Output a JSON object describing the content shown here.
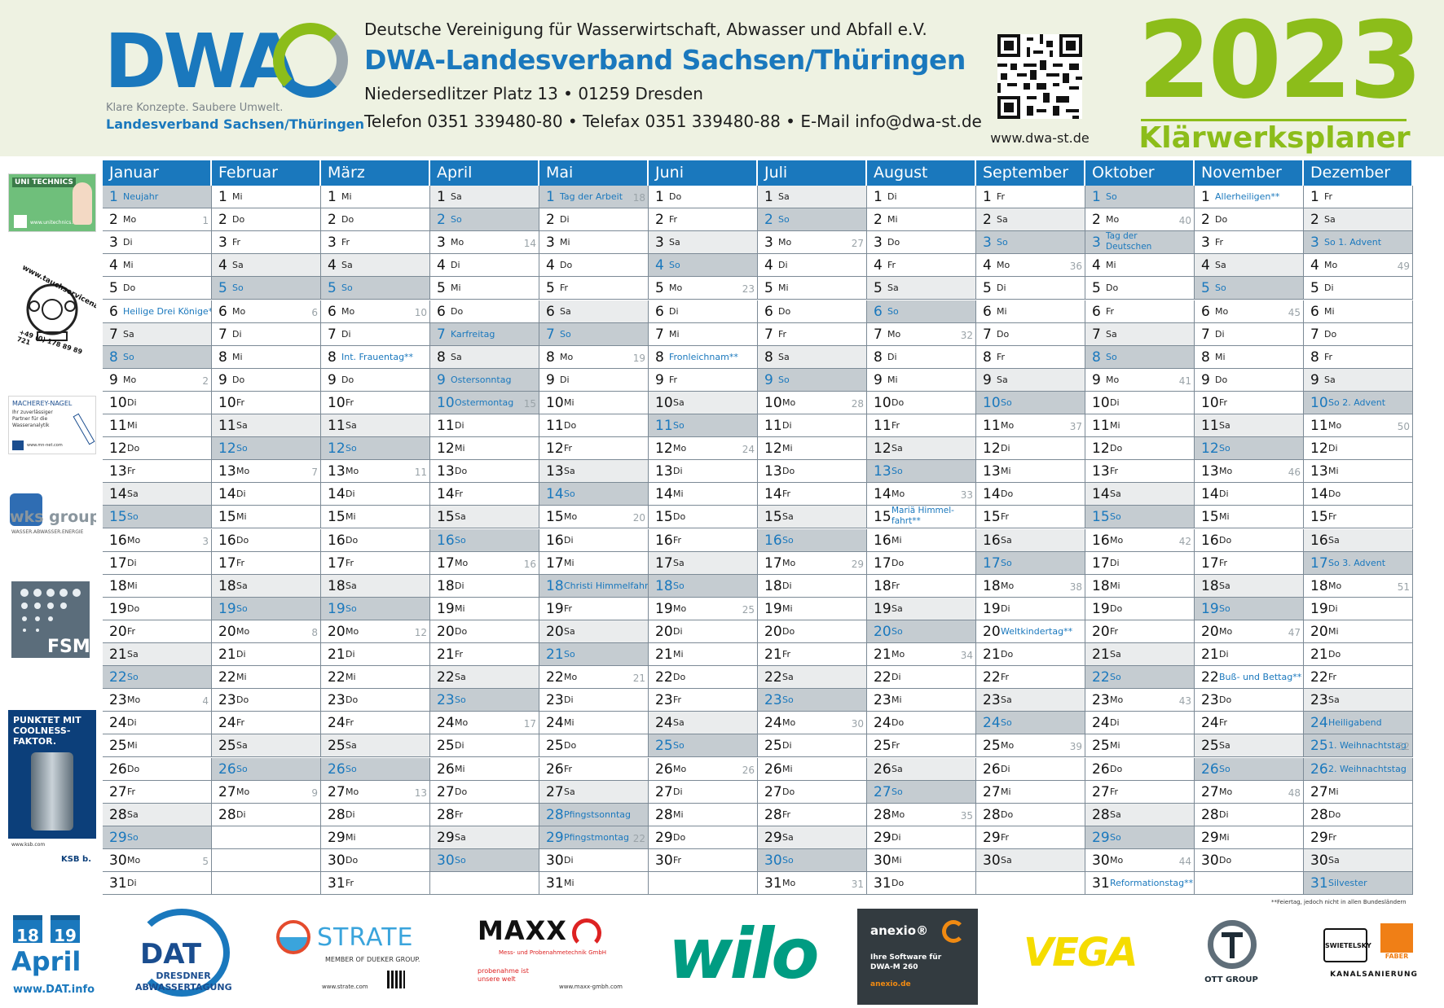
{
  "header": {
    "logo_text": "DWA",
    "slogan": "Klare Konzepte. Saubere Umwelt.",
    "logo_sub": "Landesverband Sachsen/Thüringen",
    "org_line": "Deutsche Vereinigung für Wasserwirtschaft, Abwasser und Abfall e.V.",
    "title": "DWA-Landesverband Sachsen/Thüringen",
    "address": "Niedersedlitzer Platz 13 • 01259 Dresden",
    "contact": "Telefon 0351 339480-80 • Telefax 0351 339480-88 • E-Mail  info@dwa-st.de",
    "url": "www.dwa-st.de",
    "year": "2023",
    "subtitle": "Klärwerksplaner"
  },
  "colors": {
    "brand_blue": "#1a78bd",
    "brand_green": "#8cbd1a",
    "sunday_gray": "#c5ccd1",
    "saturday_gray": "#eaeced"
  },
  "months": [
    {
      "name": "Januar",
      "start": 0,
      "days": 31,
      "weeks": {
        "2": "1",
        "9": "2",
        "16": "3",
        "23": "4",
        "30": "5"
      },
      "holidays": {
        "1": "Neujahr",
        "6": "Heilige Drei Könige**"
      }
    },
    {
      "name": "Februar",
      "start": 3,
      "days": 28,
      "weeks": {
        "6": "6",
        "13": "7",
        "20": "8",
        "27": "9"
      },
      "holidays": {}
    },
    {
      "name": "März",
      "start": 3,
      "days": 31,
      "weeks": {
        "6": "10",
        "13": "11",
        "20": "12",
        "27": "13"
      },
      "holidays": {
        "8": "Int. Frauentag**"
      }
    },
    {
      "name": "April",
      "start": 6,
      "days": 30,
      "weeks": {
        "3": "14",
        "10": "15",
        "17": "16",
        "24": "17"
      },
      "holidays": {
        "7": "Karfreitag",
        "9": "Ostersonntag",
        "10": "Ostermontag"
      }
    },
    {
      "name": "Mai",
      "start": 1,
      "days": 31,
      "weeks": {
        "1": "18",
        "8": "19",
        "15": "20",
        "22": "21",
        "29": "22"
      },
      "holidays": {
        "1": "Tag der Arbeit",
        "18": "Christi Himmelfahrt",
        "28": "Pfingstsonntag",
        "29": "Pfingstmontag"
      }
    },
    {
      "name": "Juni",
      "start": 4,
      "days": 30,
      "weeks": {
        "5": "23",
        "12": "24",
        "19": "25",
        "26": "26"
      },
      "holidays": {
        "8": "Fronleichnam**"
      }
    },
    {
      "name": "Juli",
      "start": 6,
      "days": 31,
      "weeks": {
        "3": "27",
        "10": "28",
        "17": "29",
        "24": "30",
        "31": "31"
      },
      "holidays": {}
    },
    {
      "name": "August",
      "start": 2,
      "days": 31,
      "weeks": {
        "7": "32",
        "14": "33",
        "21": "34",
        "28": "35"
      },
      "holidays": {
        "15": "Mariä Himmel-fahrt**"
      }
    },
    {
      "name": "September",
      "start": 5,
      "days": 30,
      "weeks": {
        "4": "36",
        "11": "37",
        "18": "38",
        "25": "39"
      },
      "holidays": {
        "20": "Weltkindertag**"
      }
    },
    {
      "name": "Oktober",
      "start": 0,
      "days": 31,
      "weeks": {
        "2": "40",
        "9": "41",
        "16": "42",
        "23": "43",
        "30": "44"
      },
      "holidays": {
        "3": "Tag der Deutschen Einheit",
        "31": "Reformationstag**"
      }
    },
    {
      "name": "November",
      "start": 3,
      "days": 30,
      "weeks": {
        "6": "45",
        "13": "46",
        "20": "47",
        "27": "48"
      },
      "holidays": {
        "1": "Allerheiligen**",
        "22": "Buß- und Bettag**"
      }
    },
    {
      "name": "Dezember",
      "start": 5,
      "days": 31,
      "weeks": {
        "4": "49",
        "11": "50",
        "18": "51",
        "25": "52"
      },
      "holidays": {
        "3": "So 1. Advent",
        "10": "So 2. Advent",
        "17": "So 3. Advent",
        "24": "Heiligabend",
        "25": "1. Weihnachtstag",
        "26": "2. Weihnachtstag",
        "31": "Silvester"
      }
    }
  ],
  "weekday_abbr": [
    "So",
    "Mo",
    "Di",
    "Mi",
    "Do",
    "Fr",
    "Sa"
  ],
  "footnote": "**Feiertag, jedoch nicht in allen Bundesländern",
  "left_ads": {
    "unitechnics": "UNI TECHNICS",
    "unitechnics_url": "www.unitechnics.de",
    "tauch_url": "www.tauchservicenaue.de",
    "tauch_phone": "+49 (0) 178 89 89 721",
    "mn_name": "MACHEREY-NAGEL",
    "mn_tag": "Ihr zuverlässiger Partner für die Wasseranalytik",
    "mn_url": "www.mn-net.com",
    "wks_name": "wks group",
    "wks_tag": "WASSER.ABWASSER.ENERGIE",
    "fsm": "FSM",
    "ksb_head": "PUNKTET MIT COOLNESS-FAKTOR.",
    "ksb_url": "www.ksb.com",
    "ksb_logo": "KSB b."
  },
  "bottom_ads": {
    "dat_d1": "18",
    "dat_d2": "19",
    "dat_month": "April",
    "dat_url": "www.DAT.info",
    "dat_logo": "DAT",
    "dat_name": "DRESDNER ABWASSERTAGUNG",
    "strate": "STRATE",
    "strate_sub": "MEMBER OF DUEKER GROUP.",
    "strate_url": "www.strate.com",
    "maxx": "MAXX",
    "maxx_sub": "Mess- und Probenahmetechnik GmbH",
    "maxx_claim": "probenahme ist unsere welt",
    "maxx_url": "www.maxx-gmbh.com",
    "wilo": "wilo",
    "anexio": "anexio®",
    "anexio_text": "Ihre Software für DWA-M 260",
    "anexio_url": "anexio.de",
    "vega": "VEGA",
    "ott": "OTT GROUP",
    "swietelsky": "SWIETELSKY",
    "faber": "FABER",
    "kanal": "KANALSANIERUNG"
  }
}
